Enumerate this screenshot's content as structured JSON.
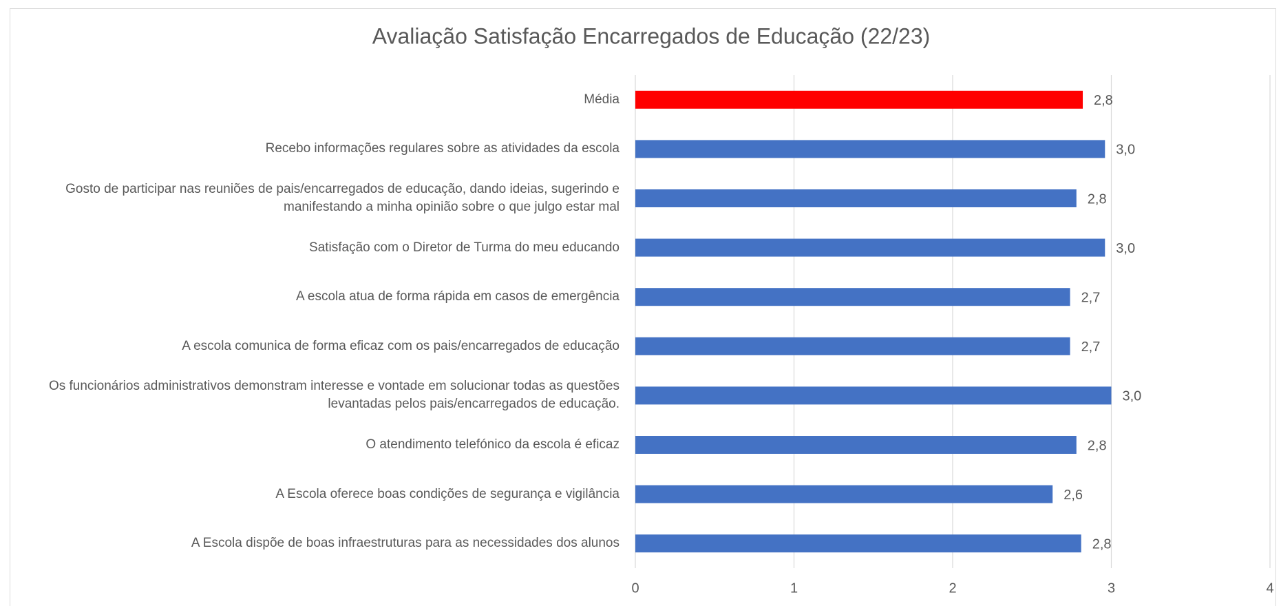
{
  "chart_data": {
    "type": "barh",
    "title": "Avaliação Satisfação Encarregados de Educação (22/23)",
    "categories": [
      "Média",
      "Recebo informações regulares sobre as atividades da escola",
      "Gosto de participar nas reuniões de pais/encarregados de educação, dando ideias, sugerindo e manifestando a minha opinião sobre o que julgo estar mal",
      "Satisfação com o Diretor de Turma do meu educando",
      "A escola atua de forma rápida em casos de emergência",
      "A escola comunica de forma eficaz com os pais/encarregados de educação",
      "Os funcionários administrativos demonstram interesse e vontade em solucionar todas as questões levantadas pelos pais/encarregados de educação.",
      "O atendimento telefónico da escola é eficaz",
      "A Escola oferece boas condições de segurança e vigilância",
      "A Escola dispõe de boas infraestruturas para as necessidades dos alunos"
    ],
    "values": [
      2.82,
      2.96,
      2.78,
      2.96,
      2.74,
      2.74,
      3.0,
      2.78,
      2.63,
      2.81
    ],
    "value_labels": [
      "2,8",
      "3,0",
      "2,8",
      "3,0",
      "2,7",
      "2,7",
      "3,0",
      "2,8",
      "2,6",
      "2,8"
    ],
    "colors": [
      "#ff0000",
      "#4472c4",
      "#4472c4",
      "#4472c4",
      "#4472c4",
      "#4472c4",
      "#4472c4",
      "#4472c4",
      "#4472c4",
      "#4472c4"
    ],
    "xlim": [
      0,
      4
    ],
    "xticks": [
      0,
      1,
      2,
      3,
      4
    ],
    "grid": true
  }
}
